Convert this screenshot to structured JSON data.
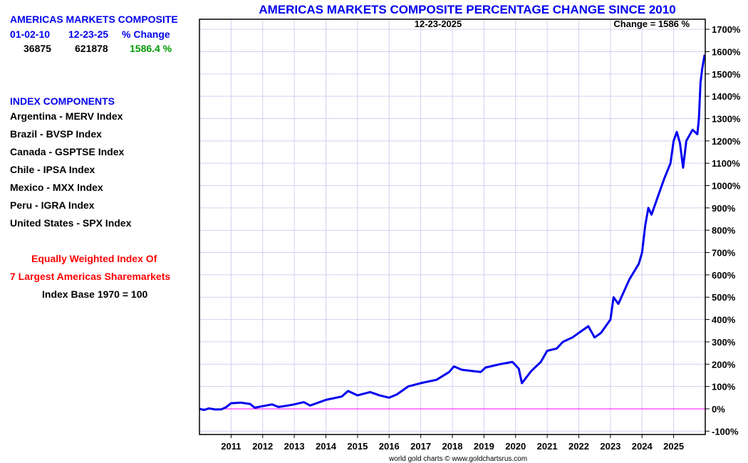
{
  "sidebar": {
    "title": "AMERICAS MARKETS COMPOSITE",
    "col_start": "01-02-10",
    "col_end": "12-23-25",
    "col_change": "% Change",
    "val_start": "36875",
    "val_end": "621878",
    "val_change": "1586.4 %",
    "components_title": "INDEX COMPONENTS",
    "components": [
      "Argentina - MERV Index",
      "Brazil - BVSP Index",
      "Canada - GSPTSE Index",
      "Chile - IPSA Index",
      "Mexico - MXX Index",
      "Peru - IGRA Index",
      "United States - SPX Index"
    ],
    "note1": "Equally Weighted Index Of",
    "note2": "7 Largest Americas Sharemarkets",
    "note3": "Index Base 1970 = 100"
  },
  "colors": {
    "line": "#0000ee",
    "zero": "#ff00ff",
    "grid": "#d0d0f0"
  },
  "chart_data": {
    "type": "line",
    "title": "AMERICAS MARKETS COMPOSITE PERCENTAGE CHANGE SINCE 2010",
    "date_label": "12-23-2025",
    "change_label": "Change = 1586 %",
    "footer": "world gold charts © www.goldchartsrus.com",
    "xlim": [
      2010,
      2026
    ],
    "ylim": [
      -115,
      1745
    ],
    "x_ticks": [
      2011,
      2012,
      2013,
      2014,
      2015,
      2016,
      2017,
      2018,
      2019,
      2020,
      2021,
      2022,
      2023,
      2024,
      2025
    ],
    "x_tick_labels": [
      "2011",
      "2012",
      "2013",
      "2014",
      "2015",
      "2016",
      "2017",
      "2018",
      "2019",
      "2020",
      "2021",
      "2022",
      "2023",
      "2024",
      "2025"
    ],
    "y_ticks": [
      -100,
      0,
      100,
      200,
      300,
      400,
      500,
      600,
      700,
      800,
      900,
      1000,
      1100,
      1200,
      1300,
      1400,
      1500,
      1600,
      1700
    ],
    "y_tick_labels": [
      "-100%",
      "0%",
      "100%",
      "200%",
      "300%",
      "400%",
      "500%",
      "600%",
      "700%",
      "800%",
      "900%",
      "1000%",
      "1100%",
      "1200%",
      "1300%",
      "1400%",
      "1500%",
      "1600%",
      "1700%"
    ],
    "series": [
      {
        "name": "Americas Markets Composite % change",
        "x": [
          2010.0,
          2010.15,
          2010.3,
          2010.5,
          2010.7,
          2010.85,
          2011.0,
          2011.3,
          2011.6,
          2011.75,
          2012.0,
          2012.3,
          2012.5,
          2012.8,
          2013.0,
          2013.3,
          2013.5,
          2013.8,
          2014.0,
          2014.5,
          2014.7,
          2015.0,
          2015.4,
          2015.7,
          2016.0,
          2016.25,
          2016.6,
          2017.0,
          2017.5,
          2017.9,
          2018.05,
          2018.3,
          2018.9,
          2019.05,
          2019.5,
          2019.9,
          2020.1,
          2020.2,
          2020.5,
          2020.8,
          2021.0,
          2021.3,
          2021.5,
          2021.8,
          2022.0,
          2022.3,
          2022.5,
          2022.7,
          2023.0,
          2023.1,
          2023.25,
          2023.6,
          2023.9,
          2024.0,
          2024.1,
          2024.2,
          2024.3,
          2024.5,
          2024.7,
          2024.9,
          2025.0,
          2025.1,
          2025.2,
          2025.3,
          2025.4,
          2025.6,
          2025.75,
          2025.8,
          2025.85,
          2025.9,
          2025.98
        ],
        "y": [
          0,
          -5,
          2,
          -3,
          -2,
          8,
          25,
          28,
          22,
          5,
          12,
          20,
          8,
          15,
          20,
          30,
          15,
          30,
          40,
          55,
          80,
          60,
          75,
          60,
          50,
          65,
          100,
          115,
          130,
          165,
          190,
          175,
          165,
          185,
          200,
          210,
          180,
          115,
          170,
          210,
          260,
          270,
          300,
          320,
          340,
          370,
          320,
          340,
          400,
          500,
          470,
          580,
          650,
          700,
          820,
          900,
          870,
          950,
          1030,
          1100,
          1200,
          1240,
          1190,
          1080,
          1200,
          1250,
          1230,
          1300,
          1460,
          1520,
          1586
        ]
      }
    ]
  }
}
